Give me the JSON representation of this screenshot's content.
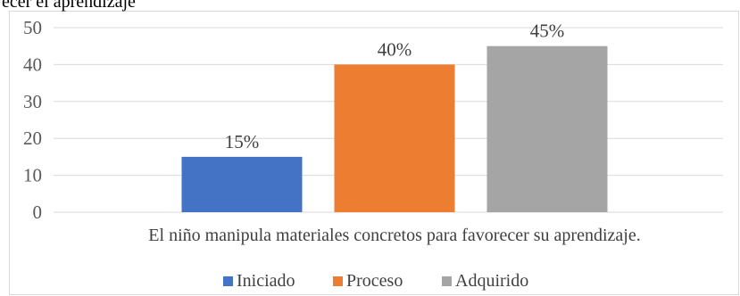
{
  "page": {
    "title_fragment": "ecer el aprendizaje"
  },
  "chart_data": {
    "type": "bar",
    "categories": [
      "El niño manipula materiales concretos para favorecer su aprendizaje."
    ],
    "series": [
      {
        "name": "Iniciado",
        "values": [
          15
        ],
        "label": "15%",
        "color": "#4472C4"
      },
      {
        "name": "Proceso",
        "values": [
          40
        ],
        "label": "40%",
        "color": "#ED7D31"
      },
      {
        "name": "Adquirido",
        "values": [
          45
        ],
        "label": "45%",
        "color": "#A5A5A5"
      }
    ],
    "yticks": [
      "0",
      "10",
      "20",
      "30",
      "40",
      "50"
    ],
    "ylim": [
      0,
      50
    ],
    "grid": true,
    "legend": "bottom"
  }
}
